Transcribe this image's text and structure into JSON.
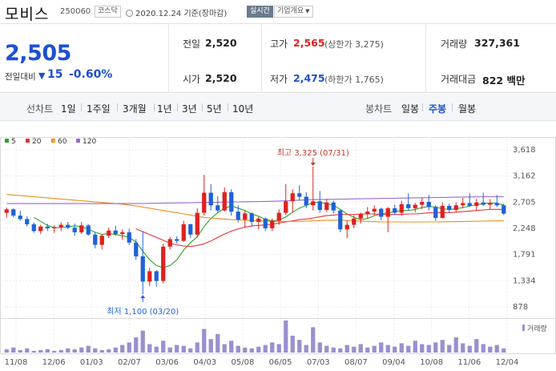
{
  "header": {
    "name": "모비스",
    "code": "250060",
    "market": "코스닥",
    "date": "2020.12.24",
    "date_suffix": "기준(장마감)",
    "live_label": "실시간",
    "info_label": "기업개요"
  },
  "price": {
    "current": "2,505",
    "change_label": "전일대비",
    "change_value": "15",
    "change_pct": "-0.60%",
    "prev_close_label": "전일",
    "prev_close": "2,520",
    "open_label": "시가",
    "open": "2,520",
    "high_label": "고가",
    "high": "2,565",
    "upper_limit": "(상한가 3,275)",
    "low_label": "저가",
    "low": "2,475",
    "lower_limit": "(하한가 1,765)",
    "volume_label": "거래량",
    "volume": "327,361",
    "amount_label": "거래대금",
    "amount": "822 백만"
  },
  "tabs": {
    "line_chart_label": "선차트",
    "line_periods": [
      "1일",
      "1주일",
      "3개월",
      "1년",
      "3년",
      "5년",
      "10년"
    ],
    "candle_chart_label": "봉차트",
    "candle_periods": [
      "일봉",
      "주봉",
      "월봉"
    ],
    "active_candle": "주봉"
  },
  "colors": {
    "up": "#e02020",
    "down": "#1f62d6",
    "ma5": "#2aa52a",
    "ma20": "#e8323c",
    "ma60": "#f08c1c",
    "ma120": "#9a6ad2",
    "volume": "#9b8fcf"
  },
  "chart_data": {
    "type": "candlestick",
    "interval": "weekly",
    "period": "2019-11 to 2020-12",
    "y_ticks": [
      "3,618",
      "3,162",
      "2,705",
      "2,248",
      "1,791",
      "1,334",
      "878"
    ],
    "ylim": [
      878,
      3618
    ],
    "x_ticks": [
      "11/08",
      "12/06",
      "01/03",
      "02/07",
      "03/06",
      "04/03",
      "05/08",
      "06/05",
      "07/03",
      "08/07",
      "09/04",
      "10/08",
      "11/06",
      "12/04"
    ],
    "legend": [
      "5",
      "20",
      "60",
      "120"
    ],
    "volume_legend": "거래량",
    "annotations": {
      "high": "최고 3,325 (07/31)",
      "low": "최저 1,100 (03/20)"
    },
    "candles": [
      {
        "o": 2520,
        "h": 2610,
        "l": 2440,
        "c": 2580
      },
      {
        "o": 2580,
        "h": 2600,
        "l": 2440,
        "c": 2470
      },
      {
        "o": 2470,
        "h": 2560,
        "l": 2380,
        "c": 2410
      },
      {
        "o": 2410,
        "h": 2460,
        "l": 2280,
        "c": 2320
      },
      {
        "o": 2320,
        "h": 2350,
        "l": 2170,
        "c": 2200
      },
      {
        "o": 2200,
        "h": 2310,
        "l": 2150,
        "c": 2280
      },
      {
        "o": 2280,
        "h": 2330,
        "l": 2200,
        "c": 2250
      },
      {
        "o": 2250,
        "h": 2300,
        "l": 2170,
        "c": 2270
      },
      {
        "o": 2270,
        "h": 2350,
        "l": 2200,
        "c": 2310
      },
      {
        "o": 2310,
        "h": 2360,
        "l": 2230,
        "c": 2260
      },
      {
        "o": 2260,
        "h": 2330,
        "l": 2120,
        "c": 2180
      },
      {
        "o": 2180,
        "h": 2360,
        "l": 2150,
        "c": 2300
      },
      {
        "o": 2300,
        "h": 2320,
        "l": 2120,
        "c": 2140
      },
      {
        "o": 2140,
        "h": 2180,
        "l": 1900,
        "c": 1960
      },
      {
        "o": 1960,
        "h": 2150,
        "l": 1880,
        "c": 2120
      },
      {
        "o": 2120,
        "h": 2260,
        "l": 2080,
        "c": 2210
      },
      {
        "o": 2210,
        "h": 2290,
        "l": 2120,
        "c": 2150
      },
      {
        "o": 2150,
        "h": 2230,
        "l": 2050,
        "c": 2180
      },
      {
        "o": 2180,
        "h": 2240,
        "l": 1960,
        "c": 2000
      },
      {
        "o": 2000,
        "h": 2060,
        "l": 1700,
        "c": 1760
      },
      {
        "o": 1760,
        "h": 2200,
        "l": 1100,
        "c": 1320
      },
      {
        "o": 1320,
        "h": 1560,
        "l": 1240,
        "c": 1500
      },
      {
        "o": 1500,
        "h": 1520,
        "l": 1230,
        "c": 1330
      },
      {
        "o": 1330,
        "h": 1980,
        "l": 1290,
        "c": 1930
      },
      {
        "o": 1930,
        "h": 2100,
        "l": 1880,
        "c": 2060
      },
      {
        "o": 2060,
        "h": 2110,
        "l": 1980,
        "c": 2030
      },
      {
        "o": 2030,
        "h": 2380,
        "l": 2010,
        "c": 2320
      },
      {
        "o": 2320,
        "h": 2330,
        "l": 2080,
        "c": 2140
      },
      {
        "o": 2140,
        "h": 2600,
        "l": 2100,
        "c": 2520
      },
      {
        "o": 2520,
        "h": 3180,
        "l": 2470,
        "c": 2870
      },
      {
        "o": 2870,
        "h": 3020,
        "l": 2560,
        "c": 2650
      },
      {
        "o": 2650,
        "h": 2810,
        "l": 2520,
        "c": 2560
      },
      {
        "o": 2560,
        "h": 2960,
        "l": 2540,
        "c": 2880
      },
      {
        "o": 2880,
        "h": 2930,
        "l": 2470,
        "c": 2540
      },
      {
        "o": 2540,
        "h": 2650,
        "l": 2350,
        "c": 2400
      },
      {
        "o": 2400,
        "h": 2560,
        "l": 2260,
        "c": 2510
      },
      {
        "o": 2510,
        "h": 2530,
        "l": 2280,
        "c": 2360
      },
      {
        "o": 2360,
        "h": 2450,
        "l": 2230,
        "c": 2420
      },
      {
        "o": 2420,
        "h": 2440,
        "l": 2200,
        "c": 2250
      },
      {
        "o": 2250,
        "h": 2420,
        "l": 2200,
        "c": 2380
      },
      {
        "o": 2380,
        "h": 2580,
        "l": 2310,
        "c": 2520
      },
      {
        "o": 2520,
        "h": 3020,
        "l": 2480,
        "c": 2720
      },
      {
        "o": 2720,
        "h": 2930,
        "l": 2520,
        "c": 2860
      },
      {
        "o": 2860,
        "h": 3000,
        "l": 2730,
        "c": 2800
      },
      {
        "o": 2800,
        "h": 2880,
        "l": 2600,
        "c": 2650
      },
      {
        "o": 2650,
        "h": 3325,
        "l": 2560,
        "c": 2720
      },
      {
        "o": 2720,
        "h": 2900,
        "l": 2520,
        "c": 2570
      },
      {
        "o": 2570,
        "h": 2760,
        "l": 2530,
        "c": 2700
      },
      {
        "o": 2700,
        "h": 2730,
        "l": 2510,
        "c": 2560
      },
      {
        "o": 2560,
        "h": 2580,
        "l": 2180,
        "c": 2230
      },
      {
        "o": 2230,
        "h": 2380,
        "l": 2080,
        "c": 2310
      },
      {
        "o": 2310,
        "h": 2470,
        "l": 2250,
        "c": 2420
      },
      {
        "o": 2420,
        "h": 2520,
        "l": 2330,
        "c": 2500
      },
      {
        "o": 2500,
        "h": 2620,
        "l": 2420,
        "c": 2540
      },
      {
        "o": 2540,
        "h": 2650,
        "l": 2480,
        "c": 2590
      },
      {
        "o": 2590,
        "h": 2610,
        "l": 2390,
        "c": 2450
      },
      {
        "o": 2450,
        "h": 2620,
        "l": 2180,
        "c": 2600
      },
      {
        "o": 2600,
        "h": 2660,
        "l": 2480,
        "c": 2520
      },
      {
        "o": 2520,
        "h": 2730,
        "l": 2470,
        "c": 2670
      },
      {
        "o": 2670,
        "h": 2860,
        "l": 2560,
        "c": 2600
      },
      {
        "o": 2600,
        "h": 2690,
        "l": 2530,
        "c": 2660
      },
      {
        "o": 2660,
        "h": 2780,
        "l": 2580,
        "c": 2710
      },
      {
        "o": 2710,
        "h": 2830,
        "l": 2560,
        "c": 2620
      },
      {
        "o": 2620,
        "h": 2650,
        "l": 2380,
        "c": 2430
      },
      {
        "o": 2430,
        "h": 2700,
        "l": 2420,
        "c": 2640
      },
      {
        "o": 2640,
        "h": 2680,
        "l": 2520,
        "c": 2570
      },
      {
        "o": 2570,
        "h": 2700,
        "l": 2520,
        "c": 2650
      },
      {
        "o": 2650,
        "h": 2780,
        "l": 2600,
        "c": 2690
      },
      {
        "o": 2690,
        "h": 2860,
        "l": 2620,
        "c": 2640
      },
      {
        "o": 2640,
        "h": 2760,
        "l": 2560,
        "c": 2700
      },
      {
        "o": 2700,
        "h": 2870,
        "l": 2640,
        "c": 2660
      },
      {
        "o": 2660,
        "h": 2760,
        "l": 2580,
        "c": 2690
      },
      {
        "o": 2690,
        "h": 2830,
        "l": 2620,
        "c": 2650
      },
      {
        "o": 2650,
        "h": 2680,
        "l": 2480,
        "c": 2505
      }
    ],
    "volumes": [
      4,
      6,
      3,
      5,
      2,
      3,
      4,
      2,
      3,
      5,
      4,
      6,
      8,
      5,
      3,
      4,
      6,
      9,
      12,
      18,
      26,
      10,
      7,
      14,
      6,
      9,
      8,
      5,
      12,
      28,
      16,
      22,
      10,
      14,
      8,
      6,
      5,
      7,
      9,
      12,
      10,
      38,
      20,
      15,
      9,
      30,
      12,
      8,
      6,
      5,
      9,
      7,
      10,
      6,
      8,
      12,
      9,
      7,
      11,
      8,
      14,
      10,
      9,
      12,
      15,
      9,
      18,
      11,
      8,
      16,
      10,
      7,
      9,
      5
    ],
    "ma": {
      "5": [
        null,
        null,
        null,
        null,
        2440,
        2370,
        2300,
        2260,
        2262,
        2276,
        2290,
        2280,
        2230,
        2180,
        2140,
        2160,
        2140,
        2120,
        2090,
        2010,
        1850,
        1700,
        1600,
        1560,
        1600,
        1700,
        1870,
        2000,
        2100,
        2280,
        2420,
        2520,
        2600,
        2640,
        2600,
        2560,
        2500,
        2460,
        2400,
        2380,
        2390,
        2450,
        2530,
        2600,
        2650,
        2700,
        2700,
        2680,
        2650,
        2580,
        2500,
        2440,
        2400,
        2420,
        2470,
        2500,
        2520,
        2540,
        2560,
        2560,
        2580,
        2610,
        2630,
        2620,
        2590,
        2580,
        2590,
        2610,
        2640,
        2660,
        2680,
        2690,
        2690,
        2650
      ],
      "20": [
        null,
        null,
        null,
        null,
        null,
        null,
        null,
        null,
        null,
        null,
        null,
        null,
        null,
        null,
        null,
        null,
        null,
        null,
        null,
        2240,
        2190,
        2140,
        2090,
        2040,
        1990,
        1960,
        1940,
        1930,
        1950,
        1980,
        2030,
        2090,
        2150,
        2200,
        2240,
        2270,
        2290,
        2300,
        2310,
        2320,
        2340,
        2360,
        2380,
        2400,
        2410,
        2430,
        2450,
        2470,
        2480,
        2490,
        2490,
        2490,
        2500,
        2500,
        2500,
        2490,
        2490,
        2490,
        2490,
        2500,
        2500,
        2510,
        2520,
        2520,
        2520,
        2520,
        2530,
        2540,
        2550,
        2560,
        2570,
        2580,
        2580,
        2580
      ],
      "60": [
        2840,
        2830,
        2820,
        2810,
        2800,
        2790,
        2780,
        2770,
        2760,
        2750,
        2740,
        2730,
        2720,
        2710,
        2700,
        2690,
        2680,
        2670,
        2655,
        2640,
        2620,
        2600,
        2580,
        2560,
        2540,
        2520,
        2500,
        2480,
        2460,
        2440,
        2430,
        2420,
        2410,
        2400,
        2395,
        2390,
        2385,
        2380,
        2375,
        2370,
        2370,
        2370,
        2370,
        2370,
        2375,
        2380,
        2385,
        2390,
        2390,
        2390,
        2385,
        2380,
        2375,
        2370,
        2365,
        2360,
        2360,
        2360,
        2360,
        2360,
        2360,
        2360,
        2360,
        2360,
        2362,
        2364,
        2366,
        2368,
        2370,
        2372,
        2374,
        2376,
        2378,
        2380
      ],
      "120": [
        2680,
        2680,
        2680,
        2680,
        2680,
        2680,
        2680,
        2680,
        2680,
        2680,
        2680,
        2680,
        2680,
        2680,
        2680,
        2680,
        2680,
        2680,
        2680,
        2680,
        2682,
        2684,
        2686,
        2688,
        2690,
        2692,
        2694,
        2696,
        2698,
        2700,
        2702,
        2704,
        2706,
        2708,
        2710,
        2712,
        2714,
        2716,
        2718,
        2720,
        2725,
        2730,
        2735,
        2740,
        2745,
        2750,
        2752,
        2754,
        2756,
        2758,
        2760,
        2762,
        2764,
        2766,
        2768,
        2770,
        2772,
        2774,
        2776,
        2778,
        2780,
        2782,
        2784,
        2786,
        2788,
        2790,
        2792,
        2794,
        2796,
        2798,
        2800,
        2800,
        2800,
        2800
      ]
    }
  }
}
